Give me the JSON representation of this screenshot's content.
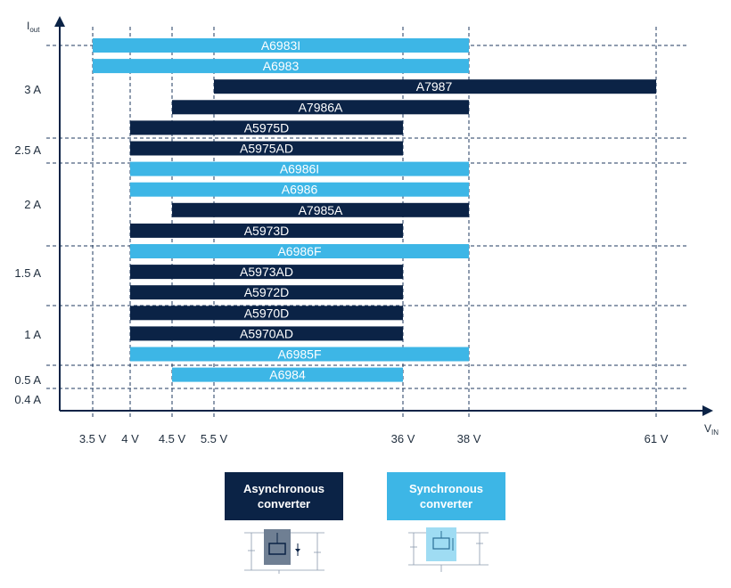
{
  "chart_data": {
    "type": "bar",
    "orientation": "horizontal-range",
    "xlabel": {
      "main": "V",
      "sub": "IN"
    },
    "ylabel": {
      "main": "I",
      "sub": "out"
    },
    "x_ticks": [
      "3.5 V",
      "4 V",
      "4.5 V",
      "5.5 V",
      "36 V",
      "38 V",
      "61 V"
    ],
    "y_ticks": [
      "3 A",
      "2.5 A",
      "2 A",
      "1.5 A",
      "1 A",
      "0.5 A",
      "0.4 A"
    ],
    "series": [
      {
        "name": "A6983I",
        "vin_min": "3.5 V",
        "vin_max": "38 V",
        "iout": "3 A",
        "type": "sync"
      },
      {
        "name": "A6983",
        "vin_min": "3.5 V",
        "vin_max": "38 V",
        "iout": "3 A",
        "type": "sync"
      },
      {
        "name": "A7987",
        "vin_min": "5.5 V",
        "vin_max": "61 V",
        "iout": "3 A",
        "type": "async"
      },
      {
        "name": "A7986A",
        "vin_min": "4.5 V",
        "vin_max": "38 V",
        "iout": "3 A",
        "type": "async"
      },
      {
        "name": "A5975D",
        "vin_min": "4 V",
        "vin_max": "36 V",
        "iout": "3 A",
        "type": "async"
      },
      {
        "name": "A5975AD",
        "vin_min": "4 V",
        "vin_max": "36 V",
        "iout": "2.5 A",
        "type": "async"
      },
      {
        "name": "A6986I",
        "vin_min": "4 V",
        "vin_max": "38 V",
        "iout": "2 A",
        "type": "sync"
      },
      {
        "name": "A6986",
        "vin_min": "4 V",
        "vin_max": "38 V",
        "iout": "2 A",
        "type": "sync"
      },
      {
        "name": "A7985A",
        "vin_min": "4.5 V",
        "vin_max": "38 V",
        "iout": "2 A",
        "type": "async"
      },
      {
        "name": "A5973D",
        "vin_min": "4 V",
        "vin_max": "36 V",
        "iout": "2 A",
        "type": "async"
      },
      {
        "name": "A6986F",
        "vin_min": "4 V",
        "vin_max": "38 V",
        "iout": "1.5 A",
        "type": "sync"
      },
      {
        "name": "A5973AD",
        "vin_min": "4 V",
        "vin_max": "36 V",
        "iout": "1.5 A",
        "type": "async"
      },
      {
        "name": "A5972D",
        "vin_min": "4 V",
        "vin_max": "36 V",
        "iout": "1.5 A",
        "type": "async"
      },
      {
        "name": "A5970D",
        "vin_min": "4 V",
        "vin_max": "36 V",
        "iout": "1 A",
        "type": "async"
      },
      {
        "name": "A5970AD",
        "vin_min": "4 V",
        "vin_max": "36 V",
        "iout": "1 A",
        "type": "async"
      },
      {
        "name": "A6985F",
        "vin_min": "4 V",
        "vin_max": "38 V",
        "iout": "0.5 A",
        "type": "sync"
      },
      {
        "name": "A6984",
        "vin_min": "4.5 V",
        "vin_max": "36 V",
        "iout": "0.4 A",
        "type": "sync"
      }
    ],
    "legend": [
      {
        "label": "Asynchronous\nconverter",
        "color": "#0b2346"
      },
      {
        "label": "Synchronous\nconverter",
        "color": "#3db6e6"
      }
    ],
    "colors": {
      "async": "#0b2346",
      "sync": "#3db6e6",
      "axis": "#0b2346",
      "grid": "#1f3a5f"
    },
    "grid": true
  }
}
